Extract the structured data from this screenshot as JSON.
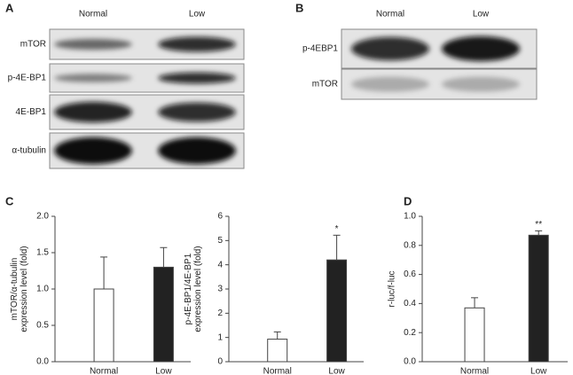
{
  "panel_labels": [
    "A",
    "B",
    "C",
    "D"
  ],
  "blot_a": {
    "columns": [
      "Normal",
      "Low"
    ],
    "rows": [
      "mTOR",
      "p-4E-BP1",
      "4E-BP1",
      "α-tubulin"
    ]
  },
  "blot_b": {
    "columns": [
      "Normal",
      "Low"
    ],
    "rows": [
      "p-4EBP1",
      "mTOR"
    ]
  },
  "chart_data": [
    {
      "type": "bar",
      "ylabel": [
        "mTOR/α-tubulin",
        "expression level (fold)"
      ],
      "categories": [
        "Normal",
        "Low"
      ],
      "values": [
        1.0,
        1.3
      ],
      "errors": [
        0.44,
        0.27
      ],
      "colors": [
        "#ffffff",
        "#222222"
      ],
      "significance": [
        null,
        null
      ],
      "ylim": [
        0,
        2
      ],
      "yticks": [
        {
          "value": 0,
          "label": "0.0"
        },
        {
          "value": 0.5,
          "label": "0.5"
        },
        {
          "value": 1,
          "label": "1.0"
        },
        {
          "value": 1.5,
          "label": "1.5"
        },
        {
          "value": 2,
          "label": "2.0"
        }
      ]
    },
    {
      "type": "bar",
      "ylabel": [
        "p-4E-BP1/4E-BP1",
        "expression level (fold)"
      ],
      "categories": [
        "Normal",
        "Low"
      ],
      "values": [
        0.93,
        4.2
      ],
      "errors": [
        0.3,
        1.02
      ],
      "colors": [
        "#ffffff",
        "#222222"
      ],
      "significance": [
        null,
        "*"
      ],
      "ylim": [
        0,
        6
      ],
      "yticks": [
        0,
        1,
        2,
        3,
        4,
        5,
        6
      ]
    },
    {
      "type": "bar",
      "ylabel": [
        "r-luc/f-luc"
      ],
      "categories": [
        "Normal",
        "Low"
      ],
      "values": [
        0.37,
        0.87
      ],
      "errors": [
        0.07,
        0.03
      ],
      "colors": [
        "#ffffff",
        "#222222"
      ],
      "significance": [
        null,
        "**"
      ],
      "ylim": [
        0,
        1
      ],
      "yticks": [
        {
          "value": 0,
          "label": "0.0"
        },
        {
          "value": 0.2,
          "label": "0.2"
        },
        {
          "value": 0.4,
          "label": "0.4"
        },
        {
          "value": 0.6,
          "label": "0.6"
        },
        {
          "value": 0.8,
          "label": "0.8"
        },
        {
          "value": 1,
          "label": "1.0"
        }
      ]
    }
  ]
}
